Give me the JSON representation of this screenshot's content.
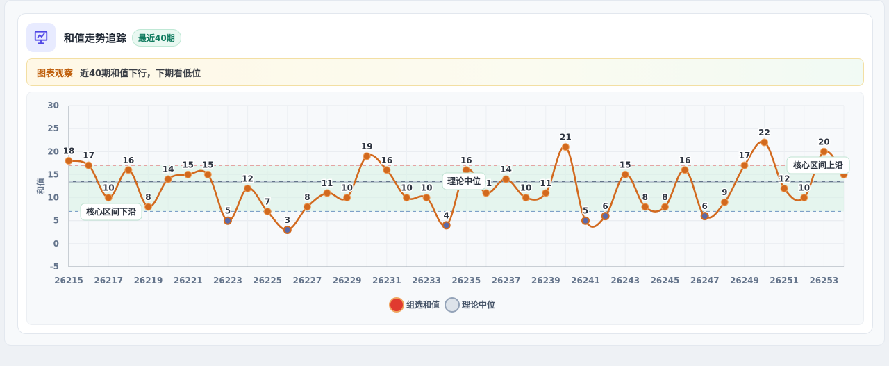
{
  "card": {
    "title": "和值走势追踪",
    "badge": "最近40期",
    "note_label": "图表观察",
    "note_text": "近40期和值下行，下期看低位"
  },
  "chart_data": {
    "type": "line",
    "ylabel": "和值",
    "ylim": [
      -5,
      30
    ],
    "yticks": [
      -5,
      0,
      5,
      10,
      15,
      20,
      25,
      30
    ],
    "grid": true,
    "x": [
      26215,
      26216,
      26217,
      26218,
      26219,
      26220,
      26221,
      26222,
      26223,
      26224,
      26225,
      26226,
      26227,
      26228,
      26229,
      26230,
      26231,
      26232,
      26233,
      26234,
      26235,
      26236,
      26237,
      26238,
      26239,
      26240,
      26241,
      26242,
      26243,
      26244,
      26245,
      26246,
      26247,
      26248,
      26249,
      26250,
      26251,
      26252,
      26253,
      26254
    ],
    "xtick_labels": [
      "26215",
      "26217",
      "26219",
      "26221",
      "26223",
      "26225",
      "26227",
      "26229",
      "26231",
      "26233",
      "26235",
      "26237",
      "26239",
      "26241",
      "26243",
      "26245",
      "26247",
      "26249",
      "26251",
      "26253"
    ],
    "series": [
      {
        "name": "组选和值",
        "color": "#d2691e",
        "values": [
          18,
          17,
          10,
          16,
          8,
          14,
          15,
          15,
          5,
          12,
          7,
          3,
          8,
          11,
          10,
          19,
          16,
          10,
          10,
          4,
          16,
          11,
          14,
          10,
          11,
          21,
          5,
          6,
          15,
          8,
          8,
          16,
          6,
          9,
          17,
          22,
          12,
          10,
          20,
          15
        ]
      }
    ],
    "reference_lines": [
      {
        "name": "理论中位",
        "value": 13.5,
        "color": "#64748b"
      },
      {
        "name": "核心区间上沿",
        "value": 17,
        "color": "#e48a8a"
      },
      {
        "name": "核心区间下沿",
        "value": 7,
        "color": "#7da0c8"
      }
    ],
    "core_band": [
      7,
      17
    ],
    "legend": [
      {
        "label": "组选和值",
        "color": "#e03a2f"
      },
      {
        "label": "理论中位",
        "color": "#dde3ea"
      }
    ],
    "legend_position": "bottom"
  }
}
